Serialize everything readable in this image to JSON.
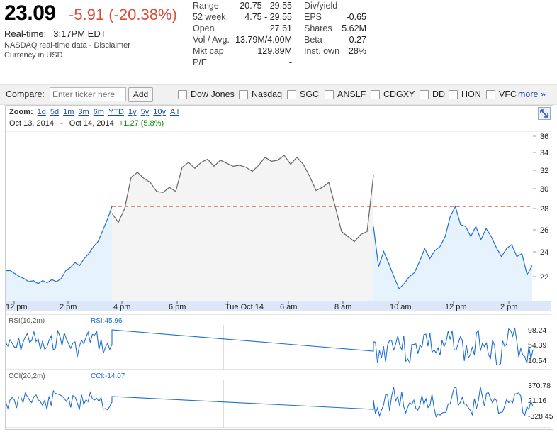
{
  "quote": {
    "price": "23.09",
    "change": "-5.91 (-20.38%)",
    "realtime_label": "Real-time:",
    "realtime_time": "3:17PM EDT",
    "source": "NASDAQ real-time data - Disclaimer",
    "currency": "Currency in USD"
  },
  "stats_left": [
    {
      "k": "Range",
      "v": "20.75 - 29.55"
    },
    {
      "k": "52 week",
      "v": "4.75 - 29.55"
    },
    {
      "k": "Open",
      "v": "27.61"
    },
    {
      "k": "Vol / Avg.",
      "v": "13.79M/4.00M"
    },
    {
      "k": "Mkt cap",
      "v": "129.89M"
    },
    {
      "k": "P/E",
      "v": "-"
    }
  ],
  "stats_right": [
    {
      "k": "Div/yield",
      "v": "-"
    },
    {
      "k": "EPS",
      "v": "-0.65"
    },
    {
      "k": "Shares",
      "v": "5.62M"
    },
    {
      "k": "Beta",
      "v": "-0.27"
    },
    {
      "k": "Inst. own",
      "v": "28%"
    }
  ],
  "compare": {
    "label": "Compare:",
    "placeholder": "Enter ticker here",
    "add_label": "Add",
    "tickers": [
      "Dow Jones",
      "Nasdaq",
      "SGC",
      "ANSLF",
      "CDGXY",
      "DD",
      "HON",
      "VFC"
    ],
    "more_label": "more »"
  },
  "zoom": {
    "label": "Zoom:",
    "options": [
      "1d",
      "5d",
      "1m",
      "3m",
      "6m",
      "YTD",
      "1y",
      "5y",
      "10y",
      "All"
    ]
  },
  "date_range": {
    "from": "Oct 13, 2014",
    "sep": "-",
    "to": "Oct 14, 2014",
    "diff": "+1.27 (5.8%)"
  },
  "colors": {
    "line": "#1f6fd0",
    "gray": "#666666",
    "fill": "#e6f2fc",
    "ref": "#b22222",
    "down": "#dd4b39",
    "up": "#0a8a0a"
  },
  "chart_data": {
    "type": "line",
    "price_axis_ticks": [
      "36",
      "34",
      "32",
      "30",
      "28",
      "26",
      "24",
      "22"
    ],
    "time_axis_labels": [
      "12 pm",
      "2 pm",
      "4 pm",
      "6 pm",
      "Tue Oct 14",
      "6 am",
      "8 am",
      "10 am",
      "12 pm",
      "2 pm"
    ],
    "reference_line": 29.0,
    "series": [
      {
        "session": "regular_oct13",
        "values": [
          22.6,
          22.6,
          22.3,
          22.0,
          21.8,
          21.5,
          21.6,
          21.3,
          21.6,
          21.4,
          21.7,
          21.5,
          21.8,
          22.6,
          22.9,
          23.4,
          23.1,
          23.8,
          24.3,
          25.0,
          25.5,
          26.6,
          27.7,
          29.0
        ]
      },
      {
        "session": "extended",
        "values": [
          28.3,
          27.4,
          28.8,
          31.9,
          32.4,
          31.8,
          31.4,
          30.5,
          30.4,
          30.9,
          30.5,
          32.9,
          33.4,
          32.8,
          33.4,
          33.7,
          33.0,
          33.6,
          33.3,
          33.0,
          33.1,
          32.9,
          32.5,
          33.1,
          33.9,
          33.5,
          33.6,
          34.1,
          33.2,
          33.9,
          33.2,
          32.0,
          30.6,
          30.9,
          31.4,
          29.0,
          26.5,
          26.0,
          25.5,
          26.2,
          26.5,
          32.1
        ]
      },
      {
        "session": "regular_oct14",
        "values": [
          27.0,
          23.0,
          24.5,
          23.3,
          22.0,
          20.8,
          21.3,
          22.0,
          22.4,
          23.5,
          24.8,
          23.8,
          24.6,
          25.0,
          26.0,
          28.0,
          29.0,
          27.2,
          27.0,
          26.0,
          27.0,
          25.7,
          26.8,
          26.0,
          24.9,
          24.0,
          24.8,
          25.2,
          24.0,
          24.3,
          22.2,
          23.09
        ]
      }
    ]
  },
  "rsi": {
    "label": "RSI(10,2m)",
    "value_label": "RSI:45.96",
    "ticks": [
      "98.24",
      "54.39",
      "10.54"
    ]
  },
  "cci": {
    "label": "CCI(20,2m)",
    "value_label": "CCI:-14.07",
    "ticks": [
      "370.78",
      "21.16",
      "-328.45"
    ]
  }
}
